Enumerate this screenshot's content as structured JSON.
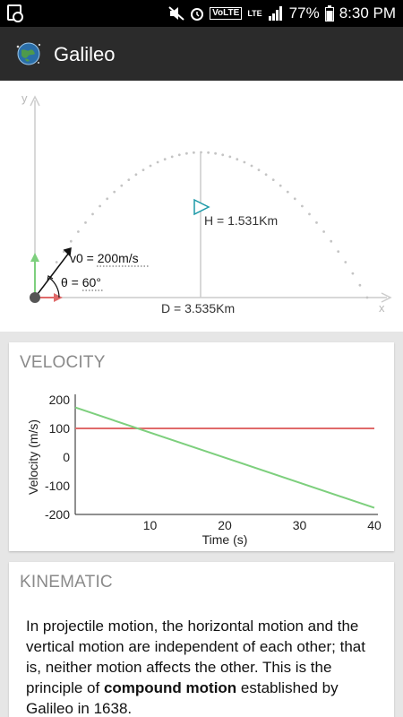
{
  "status_bar": {
    "volte": "VoLTE",
    "lte": "LTE",
    "battery": "77%",
    "time": "8:30 PM"
  },
  "app_bar": {
    "title": "Galileo"
  },
  "simulation": {
    "y_axis_label": "y",
    "x_axis_label": "x",
    "velocity_label": "v0 = 200m/s",
    "angle_label": "θ = 60°",
    "height_label": "H = 1.531Km",
    "distance_label": "D = 3.535Km"
  },
  "velocity_card": {
    "title": "VELOCITY"
  },
  "chart_data": {
    "type": "line",
    "xlabel": "Time (s)",
    "ylabel": "Velocity (m/s)",
    "xlim": [
      0,
      40
    ],
    "ylim": [
      -200,
      200
    ],
    "x_ticks": [
      10,
      20,
      30,
      40
    ],
    "y_ticks": [
      200,
      100,
      0,
      -100,
      -200
    ],
    "grid": false,
    "series": [
      {
        "color": "#e06a6a",
        "x": [
          0,
          40
        ],
        "y": [
          100,
          100
        ]
      },
      {
        "color": "#7dcf7d",
        "x": [
          0,
          40
        ],
        "y": [
          173.2,
          -176.8
        ]
      }
    ]
  },
  "kinematic_card": {
    "title": "KINEMATIC",
    "text_before": "In projectile motion, the horizontal motion and the vertical motion are independent of each other; that is, neither motion affects the other. This is the principle of ",
    "text_bold": "compound motion",
    "text_after": " established by Galileo in 1638."
  }
}
